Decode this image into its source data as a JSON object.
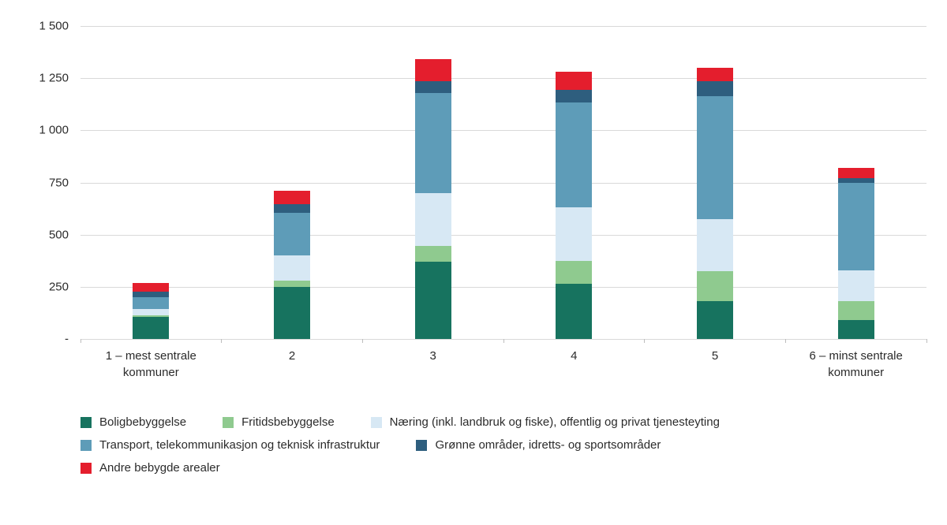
{
  "chart_data": {
    "type": "bar",
    "stacked": true,
    "title": "",
    "xlabel": "",
    "ylabel": "",
    "categories": [
      "1 – mest sentrale kommuner",
      "2",
      "3",
      "4",
      "5",
      "6 – minst sentrale kommuner"
    ],
    "series": [
      {
        "name": "Boligbebyggelse",
        "color": "#17735f",
        "values": [
          105,
          250,
          370,
          265,
          180,
          90
        ]
      },
      {
        "name": "Fritidsbebyggelse",
        "color": "#8fca8f",
        "values": [
          10,
          30,
          75,
          110,
          145,
          90
        ]
      },
      {
        "name": "Næring (inkl. landbruk og fiske), offentlig og privat tjenesteyting",
        "color": "#d7e8f4",
        "values": [
          30,
          120,
          255,
          255,
          250,
          150
        ]
      },
      {
        "name": "Transport, telekommunikasjon og teknisk infrastruktur",
        "color": "#5e9cb8",
        "values": [
          55,
          205,
          480,
          505,
          590,
          420
        ]
      },
      {
        "name": "Grønne områder, idretts- og sportsområder",
        "color": "#2e5e7e",
        "values": [
          25,
          40,
          55,
          60,
          70,
          20
        ]
      },
      {
        "name": "Andre bebygde arealer",
        "color": "#e41e2d",
        "values": [
          45,
          65,
          105,
          85,
          65,
          50
        ]
      }
    ],
    "totals": [
      270,
      710,
      1340,
      1280,
      1300,
      820
    ],
    "ylim": [
      0,
      1500
    ],
    "yticks": [
      0,
      250,
      500,
      750,
      1000,
      1250,
      1500
    ],
    "ytick_labels": [
      "-",
      "250",
      "500",
      "750",
      "1 000",
      "1 250",
      "1 500"
    ],
    "grid": true,
    "legend_position": "bottom",
    "legend_rows": [
      [
        0,
        1,
        2
      ],
      [
        3,
        4
      ],
      [
        5
      ]
    ],
    "gridline_color": "#d9d9d9",
    "text_color": "#2b2b2b"
  }
}
